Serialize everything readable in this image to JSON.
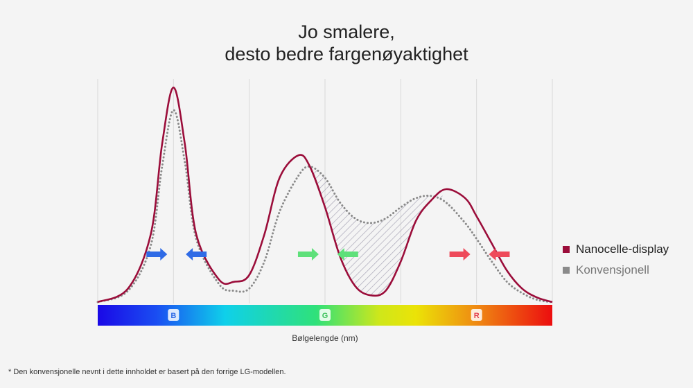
{
  "title": {
    "line1": "Jo smalere,",
    "line2": "desto bedre fargenøyaktighet"
  },
  "footnote": "* Den konvensjonelle nevnt i dette innholdet er basert på den forrige LG-modellen.",
  "colors": {
    "nanocell": "#9b0d3a",
    "conventional": "#8a8a8a",
    "hatch": "#a9a6b7",
    "grid": "#d9d9d9",
    "arrow_b": "#2f6be6",
    "arrow_g": "#5ee07a",
    "arrow_r": "#ee4a5a"
  },
  "chart_data": {
    "type": "line",
    "title": "Jo smalere, desto bedre fargenøyaktighet",
    "xlabel": "Bølgelengde (nm)",
    "ylabel": "",
    "xlim": [
      0,
      6
    ],
    "ylim": [
      0,
      1
    ],
    "grid": true,
    "legend_position": "right",
    "band_labels": [
      {
        "label": "B",
        "x": 1,
        "color": "#2f6be6"
      },
      {
        "label": "G",
        "x": 3,
        "color": "#3cc15a"
      },
      {
        "label": "R",
        "x": 5,
        "color": "#e23b4b"
      }
    ],
    "series": [
      {
        "name": "Nanocelle-display",
        "style": "solid",
        "x": [
          0,
          0.4,
          0.7,
          0.85,
          1.0,
          1.15,
          1.3,
          1.6,
          1.8,
          2.0,
          2.2,
          2.4,
          2.65,
          2.8,
          3.0,
          3.2,
          3.4,
          3.6,
          3.8,
          4.0,
          4.2,
          4.4,
          4.6,
          4.85,
          5.0,
          5.2,
          5.4,
          5.6,
          5.8,
          6.0
        ],
        "values": [
          0.0,
          0.06,
          0.3,
          0.7,
          0.95,
          0.7,
          0.3,
          0.1,
          0.09,
          0.12,
          0.3,
          0.55,
          0.65,
          0.6,
          0.42,
          0.2,
          0.07,
          0.03,
          0.05,
          0.18,
          0.36,
          0.45,
          0.5,
          0.46,
          0.38,
          0.26,
          0.14,
          0.06,
          0.02,
          0.0
        ]
      },
      {
        "name": "Konvensjonell",
        "style": "dotted",
        "x": [
          0,
          0.4,
          0.7,
          0.85,
          1.0,
          1.15,
          1.3,
          1.6,
          1.8,
          2.0,
          2.2,
          2.4,
          2.65,
          2.8,
          3.0,
          3.2,
          3.4,
          3.6,
          3.8,
          4.0,
          4.2,
          4.4,
          4.6,
          4.85,
          5.0,
          5.2,
          5.4,
          5.6,
          5.8,
          6.0
        ],
        "values": [
          0.0,
          0.05,
          0.25,
          0.6,
          0.85,
          0.62,
          0.28,
          0.08,
          0.05,
          0.06,
          0.18,
          0.4,
          0.56,
          0.6,
          0.55,
          0.44,
          0.37,
          0.35,
          0.37,
          0.42,
          0.46,
          0.47,
          0.44,
          0.35,
          0.28,
          0.18,
          0.09,
          0.04,
          0.01,
          0.0
        ]
      }
    ],
    "hatched_region": {
      "x_start": 2.85,
      "x_end": 4.55
    },
    "arrows": [
      {
        "band": "B",
        "x": 0.78,
        "direction": "right"
      },
      {
        "band": "B",
        "x": 1.3,
        "direction": "left"
      },
      {
        "band": "G",
        "x": 2.78,
        "direction": "right"
      },
      {
        "band": "G",
        "x": 3.3,
        "direction": "left"
      },
      {
        "band": "R",
        "x": 4.78,
        "direction": "right"
      },
      {
        "band": "R",
        "x": 5.3,
        "direction": "left"
      }
    ]
  }
}
